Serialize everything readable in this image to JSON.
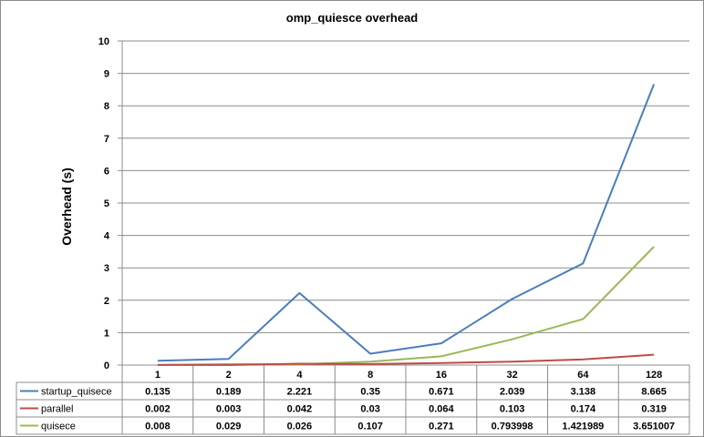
{
  "chart_data": {
    "type": "line",
    "title": "omp_quiesce overhead",
    "xlabel": "",
    "ylabel": "Overhead (s)",
    "ylim": [
      0,
      10
    ],
    "yticks": [
      0,
      1,
      2,
      3,
      4,
      5,
      6,
      7,
      8,
      9,
      10
    ],
    "categories": [
      "1",
      "2",
      "4",
      "8",
      "16",
      "32",
      "64",
      "128"
    ],
    "grid": "horizontal",
    "legend": "data table below chart",
    "series": [
      {
        "name": "startup_quisece",
        "color": "#4a7ebb",
        "values": [
          0.135,
          0.189,
          2.221,
          0.35,
          0.671,
          2.039,
          3.138,
          8.665
        ],
        "labels": [
          "0.135",
          "0.189",
          "2.221",
          "0.35",
          "0.671",
          "2.039",
          "3.138",
          "8.665"
        ]
      },
      {
        "name": "parallel",
        "color": "#be4b48",
        "values": [
          0.002,
          0.003,
          0.042,
          0.03,
          0.064,
          0.103,
          0.174,
          0.319
        ],
        "labels": [
          "0.002",
          "0.003",
          "0.042",
          "0.03",
          "0.064",
          "0.103",
          "0.174",
          "0.319"
        ]
      },
      {
        "name": "quisece",
        "color": "#98b954",
        "values": [
          0.008,
          0.029,
          0.026,
          0.107,
          0.271,
          0.793998,
          1.421989,
          3.651007
        ],
        "labels": [
          "0.008",
          "0.029",
          "0.026",
          "0.107",
          "0.271",
          "0.793998",
          "1.421989",
          "3.651007"
        ]
      }
    ]
  }
}
